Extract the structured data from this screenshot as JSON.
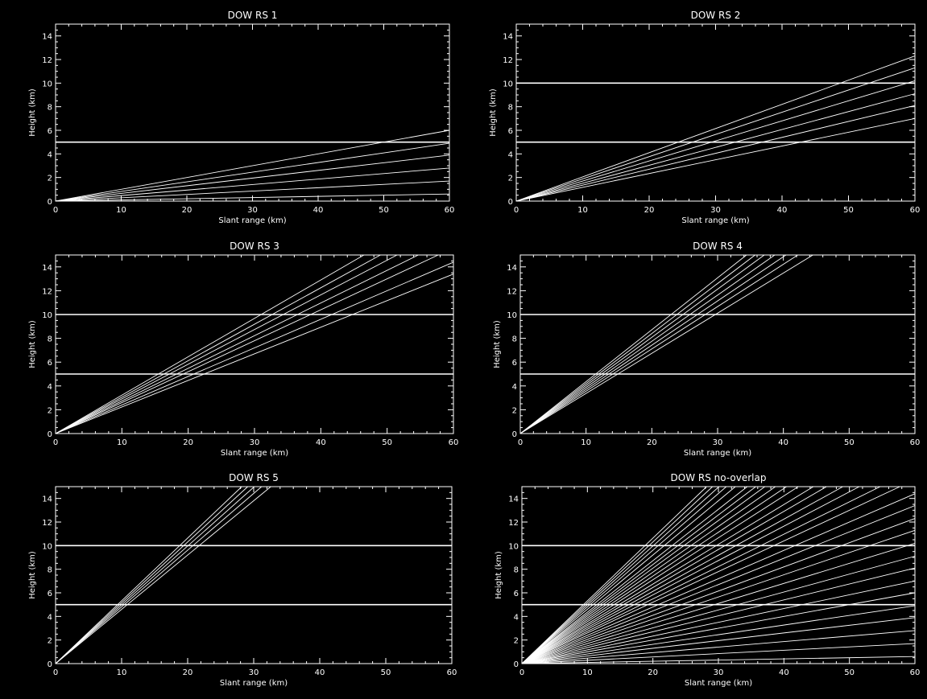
{
  "figure": {
    "background": "#000000",
    "foreground": "#ffffff"
  },
  "chart_data": [
    {
      "type": "line",
      "title": "DOW RS 1",
      "xlabel": "Slant range (km)",
      "ylabel": "Height (km)",
      "xlim": [
        0,
        60
      ],
      "ylim": [
        0,
        15
      ],
      "xticks": [
        "0",
        "10",
        "20",
        "30",
        "40",
        "50",
        "60"
      ],
      "yticks": [
        "0",
        "2",
        "4",
        "6",
        "8",
        "10",
        "12",
        "14"
      ],
      "grid": false,
      "reference_lines_y": [
        5
      ],
      "series": [
        {
          "values": [
            [
              0,
              0
            ],
            [
              60,
              0.6
            ]
          ]
        },
        {
          "values": [
            [
              0,
              0
            ],
            [
              60,
              1.7
            ]
          ]
        },
        {
          "values": [
            [
              0,
              0
            ],
            [
              60,
              2.8
            ]
          ]
        },
        {
          "values": [
            [
              0,
              0
            ],
            [
              60,
              3.9
            ]
          ]
        },
        {
          "values": [
            [
              0,
              0
            ],
            [
              60,
              4.9
            ]
          ]
        },
        {
          "values": [
            [
              0,
              0
            ],
            [
              60,
              6.0
            ]
          ]
        }
      ]
    },
    {
      "type": "line",
      "title": "DOW RS 2",
      "xlabel": "Slant range (km)",
      "ylabel": "Height (km)",
      "xlim": [
        0,
        60
      ],
      "ylim": [
        0,
        15
      ],
      "xticks": [
        "0",
        "10",
        "20",
        "30",
        "40",
        "50",
        "60"
      ],
      "yticks": [
        "0",
        "2",
        "4",
        "6",
        "8",
        "10",
        "12",
        "14"
      ],
      "grid": false,
      "reference_lines_y": [
        5,
        10
      ],
      "series": [
        {
          "values": [
            [
              0,
              0
            ],
            [
              60,
              7.0
            ]
          ]
        },
        {
          "values": [
            [
              0,
              0
            ],
            [
              60,
              8.1
            ]
          ]
        },
        {
          "values": [
            [
              0,
              0
            ],
            [
              60,
              9.1
            ]
          ]
        },
        {
          "values": [
            [
              0,
              0
            ],
            [
              60,
              10.2
            ]
          ]
        },
        {
          "values": [
            [
              0,
              0
            ],
            [
              60,
              11.3
            ]
          ]
        },
        {
          "values": [
            [
              0,
              0
            ],
            [
              60,
              12.3
            ]
          ]
        }
      ]
    },
    {
      "type": "line",
      "title": "DOW RS 3",
      "xlabel": "Slant range (km)",
      "ylabel": "Height (km)",
      "xlim": [
        0,
        60
      ],
      "ylim": [
        0,
        15
      ],
      "xticks": [
        "0",
        "10",
        "20",
        "30",
        "40",
        "50",
        "60"
      ],
      "yticks": [
        "0",
        "2",
        "4",
        "6",
        "8",
        "10",
        "12",
        "14"
      ],
      "grid": false,
      "reference_lines_y": [
        5,
        10
      ],
      "series": [
        {
          "values": [
            [
              0,
              0
            ],
            [
              60,
              13.4
            ]
          ]
        },
        {
          "values": [
            [
              0,
              0
            ],
            [
              60,
              14.4
            ]
          ]
        },
        {
          "values": [
            [
              0,
              0
            ],
            [
              57.7,
              15
            ]
          ]
        },
        {
          "values": [
            [
              0,
              0
            ],
            [
              54.7,
              15
            ]
          ]
        },
        {
          "values": [
            [
              0,
              0
            ],
            [
              51.5,
              15
            ]
          ]
        },
        {
          "values": [
            [
              0,
              0
            ],
            [
              49,
              15
            ]
          ]
        },
        {
          "values": [
            [
              0,
              0
            ],
            [
              46.5,
              15
            ]
          ]
        }
      ]
    },
    {
      "type": "line",
      "title": "DOW RS 4",
      "xlabel": "Slant range (km)",
      "ylabel": "Height (km)",
      "xlim": [
        0,
        60
      ],
      "ylim": [
        0,
        15
      ],
      "xticks": [
        "0",
        "10",
        "20",
        "30",
        "40",
        "50",
        "60"
      ],
      "yticks": [
        "0",
        "2",
        "4",
        "6",
        "8",
        "10",
        "12",
        "14"
      ],
      "grid": false,
      "reference_lines_y": [
        5,
        10
      ],
      "series": [
        {
          "values": [
            [
              0,
              0
            ],
            [
              44.5,
              15
            ]
          ]
        },
        {
          "values": [
            [
              0,
              0
            ],
            [
              42.2,
              15
            ]
          ]
        },
        {
          "values": [
            [
              0,
              0
            ],
            [
              40.4,
              15
            ]
          ]
        },
        {
          "values": [
            [
              0,
              0
            ],
            [
              38.7,
              15
            ]
          ]
        },
        {
          "values": [
            [
              0,
              0
            ],
            [
              37.1,
              15
            ]
          ]
        },
        {
          "values": [
            [
              0,
              0
            ],
            [
              35.7,
              15
            ]
          ]
        },
        {
          "values": [
            [
              0,
              0
            ],
            [
              34.4,
              15
            ]
          ]
        }
      ]
    },
    {
      "type": "line",
      "title": "DOW RS 5",
      "xlabel": "Slant range (km)",
      "ylabel": "Height (km)",
      "xlim": [
        0,
        60
      ],
      "ylim": [
        0,
        15
      ],
      "xticks": [
        "0",
        "10",
        "20",
        "30",
        "40",
        "50",
        "60"
      ],
      "yticks": [
        "0",
        "2",
        "4",
        "6",
        "8",
        "10",
        "12",
        "14"
      ],
      "grid": false,
      "reference_lines_y": [
        5,
        10
      ],
      "series": [
        {
          "values": [
            [
              0,
              0
            ],
            [
              32.6,
              15
            ]
          ]
        },
        {
          "values": [
            [
              0,
              0
            ],
            [
              31.2,
              15
            ]
          ]
        },
        {
          "values": [
            [
              0,
              0
            ],
            [
              30.1,
              15
            ]
          ]
        },
        {
          "values": [
            [
              0,
              0
            ],
            [
              29.1,
              15
            ]
          ]
        },
        {
          "values": [
            [
              0,
              0
            ],
            [
              28.2,
              15
            ]
          ]
        }
      ]
    },
    {
      "type": "line",
      "title": "DOW RS no-overlap",
      "xlabel": "Slant range (km)",
      "ylabel": "Height (km)",
      "xlim": [
        0,
        60
      ],
      "ylim": [
        0,
        15
      ],
      "xticks": [
        "0",
        "10",
        "20",
        "30",
        "40",
        "50",
        "60"
      ],
      "yticks": [
        "0",
        "2",
        "4",
        "6",
        "8",
        "10",
        "12",
        "14"
      ],
      "grid": false,
      "reference_lines_y": [
        5,
        10
      ],
      "series": [
        {
          "values": [
            [
              0,
              0
            ],
            [
              60,
              0.6
            ]
          ]
        },
        {
          "values": [
            [
              0,
              0
            ],
            [
              60,
              1.7
            ]
          ]
        },
        {
          "values": [
            [
              0,
              0
            ],
            [
              60,
              2.8
            ]
          ]
        },
        {
          "values": [
            [
              0,
              0
            ],
            [
              60,
              3.9
            ]
          ]
        },
        {
          "values": [
            [
              0,
              0
            ],
            [
              60,
              4.9
            ]
          ]
        },
        {
          "values": [
            [
              0,
              0
            ],
            [
              60,
              6.0
            ]
          ]
        },
        {
          "values": [
            [
              0,
              0
            ],
            [
              60,
              7.0
            ]
          ]
        },
        {
          "values": [
            [
              0,
              0
            ],
            [
              60,
              8.1
            ]
          ]
        },
        {
          "values": [
            [
              0,
              0
            ],
            [
              60,
              9.1
            ]
          ]
        },
        {
          "values": [
            [
              0,
              0
            ],
            [
              60,
              10.2
            ]
          ]
        },
        {
          "values": [
            [
              0,
              0
            ],
            [
              60,
              11.3
            ]
          ]
        },
        {
          "values": [
            [
              0,
              0
            ],
            [
              60,
              12.3
            ]
          ]
        },
        {
          "values": [
            [
              0,
              0
            ],
            [
              60,
              13.4
            ]
          ]
        },
        {
          "values": [
            [
              0,
              0
            ],
            [
              60,
              14.4
            ]
          ]
        },
        {
          "values": [
            [
              0,
              0
            ],
            [
              57.7,
              15
            ]
          ]
        },
        {
          "values": [
            [
              0,
              0
            ],
            [
              54.7,
              15
            ]
          ]
        },
        {
          "values": [
            [
              0,
              0
            ],
            [
              51.5,
              15
            ]
          ]
        },
        {
          "values": [
            [
              0,
              0
            ],
            [
              49,
              15
            ]
          ]
        },
        {
          "values": [
            [
              0,
              0
            ],
            [
              46.5,
              15
            ]
          ]
        },
        {
          "values": [
            [
              0,
              0
            ],
            [
              44.5,
              15
            ]
          ]
        },
        {
          "values": [
            [
              0,
              0
            ],
            [
              42.2,
              15
            ]
          ]
        },
        {
          "values": [
            [
              0,
              0
            ],
            [
              40.4,
              15
            ]
          ]
        },
        {
          "values": [
            [
              0,
              0
            ],
            [
              38.7,
              15
            ]
          ]
        },
        {
          "values": [
            [
              0,
              0
            ],
            [
              37.1,
              15
            ]
          ]
        },
        {
          "values": [
            [
              0,
              0
            ],
            [
              35.7,
              15
            ]
          ]
        },
        {
          "values": [
            [
              0,
              0
            ],
            [
              34.4,
              15
            ]
          ]
        },
        {
          "values": [
            [
              0,
              0
            ],
            [
              32.6,
              15
            ]
          ]
        },
        {
          "values": [
            [
              0,
              0
            ],
            [
              31.2,
              15
            ]
          ]
        },
        {
          "values": [
            [
              0,
              0
            ],
            [
              30.1,
              15
            ]
          ]
        },
        {
          "values": [
            [
              0,
              0
            ],
            [
              29.1,
              15
            ]
          ]
        },
        {
          "values": [
            [
              0,
              0
            ],
            [
              28.2,
              15
            ]
          ]
        }
      ]
    }
  ]
}
